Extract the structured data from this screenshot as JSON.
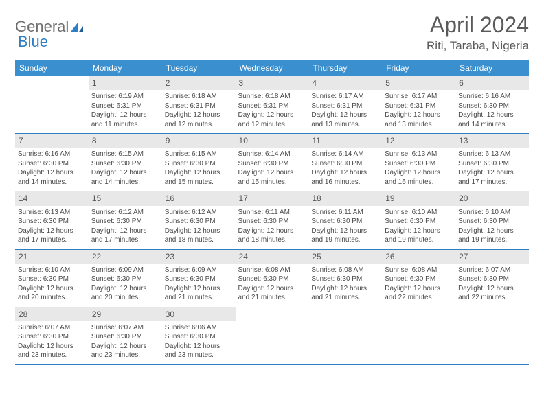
{
  "logo": {
    "text1": "General",
    "text2": "Blue"
  },
  "title": "April 2024",
  "location": "Riti, Taraba, Nigeria",
  "dow": [
    "Sunday",
    "Monday",
    "Tuesday",
    "Wednesday",
    "Thursday",
    "Friday",
    "Saturday"
  ],
  "colors": {
    "header_bg": "#3a8fce",
    "header_text": "#ffffff",
    "daynum_bg": "#e8e8e8",
    "rule": "#2f7ec2",
    "logo_gray": "#6e6e6e",
    "logo_blue": "#2f7ec2"
  },
  "weeks": [
    [
      {
        "n": "",
        "empty": true
      },
      {
        "n": "1",
        "sr": "Sunrise: 6:19 AM",
        "ss": "Sunset: 6:31 PM",
        "dl": "Daylight: 12 hours and 11 minutes."
      },
      {
        "n": "2",
        "sr": "Sunrise: 6:18 AM",
        "ss": "Sunset: 6:31 PM",
        "dl": "Daylight: 12 hours and 12 minutes."
      },
      {
        "n": "3",
        "sr": "Sunrise: 6:18 AM",
        "ss": "Sunset: 6:31 PM",
        "dl": "Daylight: 12 hours and 12 minutes."
      },
      {
        "n": "4",
        "sr": "Sunrise: 6:17 AM",
        "ss": "Sunset: 6:31 PM",
        "dl": "Daylight: 12 hours and 13 minutes."
      },
      {
        "n": "5",
        "sr": "Sunrise: 6:17 AM",
        "ss": "Sunset: 6:31 PM",
        "dl": "Daylight: 12 hours and 13 minutes."
      },
      {
        "n": "6",
        "sr": "Sunrise: 6:16 AM",
        "ss": "Sunset: 6:30 PM",
        "dl": "Daylight: 12 hours and 14 minutes."
      }
    ],
    [
      {
        "n": "7",
        "sr": "Sunrise: 6:16 AM",
        "ss": "Sunset: 6:30 PM",
        "dl": "Daylight: 12 hours and 14 minutes."
      },
      {
        "n": "8",
        "sr": "Sunrise: 6:15 AM",
        "ss": "Sunset: 6:30 PM",
        "dl": "Daylight: 12 hours and 14 minutes."
      },
      {
        "n": "9",
        "sr": "Sunrise: 6:15 AM",
        "ss": "Sunset: 6:30 PM",
        "dl": "Daylight: 12 hours and 15 minutes."
      },
      {
        "n": "10",
        "sr": "Sunrise: 6:14 AM",
        "ss": "Sunset: 6:30 PM",
        "dl": "Daylight: 12 hours and 15 minutes."
      },
      {
        "n": "11",
        "sr": "Sunrise: 6:14 AM",
        "ss": "Sunset: 6:30 PM",
        "dl": "Daylight: 12 hours and 16 minutes."
      },
      {
        "n": "12",
        "sr": "Sunrise: 6:13 AM",
        "ss": "Sunset: 6:30 PM",
        "dl": "Daylight: 12 hours and 16 minutes."
      },
      {
        "n": "13",
        "sr": "Sunrise: 6:13 AM",
        "ss": "Sunset: 6:30 PM",
        "dl": "Daylight: 12 hours and 17 minutes."
      }
    ],
    [
      {
        "n": "14",
        "sr": "Sunrise: 6:13 AM",
        "ss": "Sunset: 6:30 PM",
        "dl": "Daylight: 12 hours and 17 minutes."
      },
      {
        "n": "15",
        "sr": "Sunrise: 6:12 AM",
        "ss": "Sunset: 6:30 PM",
        "dl": "Daylight: 12 hours and 17 minutes."
      },
      {
        "n": "16",
        "sr": "Sunrise: 6:12 AM",
        "ss": "Sunset: 6:30 PM",
        "dl": "Daylight: 12 hours and 18 minutes."
      },
      {
        "n": "17",
        "sr": "Sunrise: 6:11 AM",
        "ss": "Sunset: 6:30 PM",
        "dl": "Daylight: 12 hours and 18 minutes."
      },
      {
        "n": "18",
        "sr": "Sunrise: 6:11 AM",
        "ss": "Sunset: 6:30 PM",
        "dl": "Daylight: 12 hours and 19 minutes."
      },
      {
        "n": "19",
        "sr": "Sunrise: 6:10 AM",
        "ss": "Sunset: 6:30 PM",
        "dl": "Daylight: 12 hours and 19 minutes."
      },
      {
        "n": "20",
        "sr": "Sunrise: 6:10 AM",
        "ss": "Sunset: 6:30 PM",
        "dl": "Daylight: 12 hours and 19 minutes."
      }
    ],
    [
      {
        "n": "21",
        "sr": "Sunrise: 6:10 AM",
        "ss": "Sunset: 6:30 PM",
        "dl": "Daylight: 12 hours and 20 minutes."
      },
      {
        "n": "22",
        "sr": "Sunrise: 6:09 AM",
        "ss": "Sunset: 6:30 PM",
        "dl": "Daylight: 12 hours and 20 minutes."
      },
      {
        "n": "23",
        "sr": "Sunrise: 6:09 AM",
        "ss": "Sunset: 6:30 PM",
        "dl": "Daylight: 12 hours and 21 minutes."
      },
      {
        "n": "24",
        "sr": "Sunrise: 6:08 AM",
        "ss": "Sunset: 6:30 PM",
        "dl": "Daylight: 12 hours and 21 minutes."
      },
      {
        "n": "25",
        "sr": "Sunrise: 6:08 AM",
        "ss": "Sunset: 6:30 PM",
        "dl": "Daylight: 12 hours and 21 minutes."
      },
      {
        "n": "26",
        "sr": "Sunrise: 6:08 AM",
        "ss": "Sunset: 6:30 PM",
        "dl": "Daylight: 12 hours and 22 minutes."
      },
      {
        "n": "27",
        "sr": "Sunrise: 6:07 AM",
        "ss": "Sunset: 6:30 PM",
        "dl": "Daylight: 12 hours and 22 minutes."
      }
    ],
    [
      {
        "n": "28",
        "sr": "Sunrise: 6:07 AM",
        "ss": "Sunset: 6:30 PM",
        "dl": "Daylight: 12 hours and 23 minutes."
      },
      {
        "n": "29",
        "sr": "Sunrise: 6:07 AM",
        "ss": "Sunset: 6:30 PM",
        "dl": "Daylight: 12 hours and 23 minutes."
      },
      {
        "n": "30",
        "sr": "Sunrise: 6:06 AM",
        "ss": "Sunset: 6:30 PM",
        "dl": "Daylight: 12 hours and 23 minutes."
      },
      {
        "n": "",
        "empty": true
      },
      {
        "n": "",
        "empty": true
      },
      {
        "n": "",
        "empty": true
      },
      {
        "n": "",
        "empty": true
      }
    ]
  ]
}
